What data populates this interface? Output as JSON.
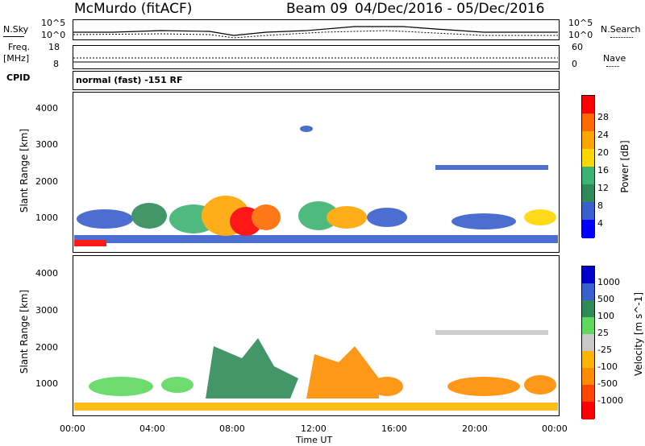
{
  "header": {
    "station": "McMurdo (fitACF)",
    "beam": "Beam 09",
    "dates": "04/Dec/2016 - 05/Dec/2016"
  },
  "strip": {
    "nsky_label": "N.Sky",
    "nsearch_label": "N.Search",
    "noise_top": "10^5",
    "noise_bot": "10^0",
    "freq_label": "Freq.",
    "freq_unit": "[MHz]",
    "freq_top": "18",
    "freq_bot": "8",
    "nave_label": "Nave",
    "nave_top": "60",
    "nave_bot": "0",
    "cpid_label": "CPID",
    "cpid_text": "normal (fast) -151 RF"
  },
  "colors": {
    "power": [
      "#0000ff",
      "#3a5fcd",
      "#2e8b57",
      "#3cb371",
      "#ffd700",
      "#ffa500",
      "#ff6a00",
      "#ff0000"
    ],
    "velocity": [
      "#ff0000",
      "#ff4500",
      "#ff8c00",
      "#ffb400",
      "#c8c8c8",
      "#5fd85f",
      "#2e8b57",
      "#3a5fcd",
      "#0000cd"
    ]
  },
  "chart_data": [
    {
      "type": "heatmap",
      "title": "Power",
      "ylabel": "Slant Range [km]",
      "xlabel": "",
      "ylim": [
        180,
        4600
      ],
      "xlim": [
        "00:00",
        "24:00"
      ],
      "y_ticks": [
        "1000",
        "2000",
        "3000",
        "4000"
      ],
      "x_ticks": [
        "00:00",
        "04:00",
        "08:00",
        "12:00",
        "16:00",
        "20:00",
        "00:00"
      ],
      "colorbar": {
        "label": "Power [dB]",
        "ticks": [
          "4",
          "8",
          "12",
          "16",
          "20",
          "24",
          "28"
        ],
        "range": [
          0,
          30
        ]
      }
    },
    {
      "type": "heatmap",
      "title": "Velocity",
      "ylabel": "Slant Range [km]",
      "xlabel": "Time UT",
      "ylim": [
        180,
        4600
      ],
      "xlim": [
        "00:00",
        "24:00"
      ],
      "y_ticks": [
        "1000",
        "2000",
        "3000",
        "4000"
      ],
      "x_ticks": [
        "00:00",
        "04:00",
        "08:00",
        "12:00",
        "16:00",
        "20:00",
        "00:00"
      ],
      "colorbar": {
        "label": "Velocity [m s^-1]",
        "ticks": [
          "1000",
          "500",
          "100",
          "25",
          "-25",
          "-100",
          "-500",
          "-1000"
        ]
      }
    }
  ]
}
